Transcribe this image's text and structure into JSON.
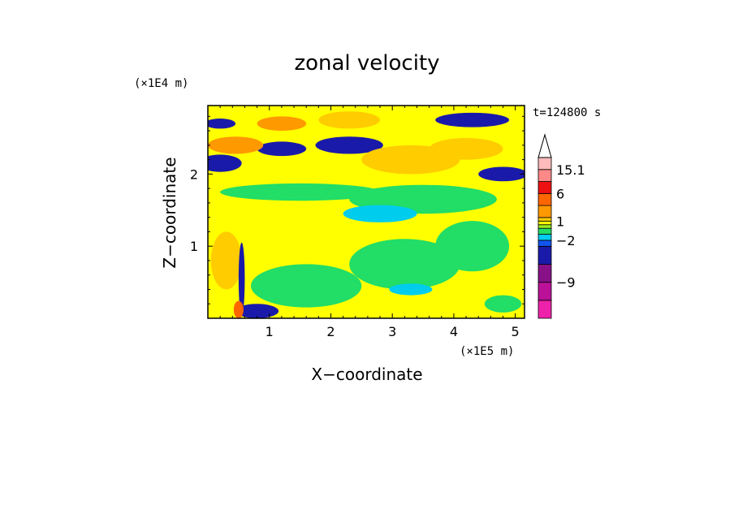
{
  "chart_data": {
    "type": "heatmap",
    "title": "zonal velocity",
    "xlabel": "X−coordinate",
    "ylabel": "Z−coordinate",
    "x_multiplier": "(×1E5 m)",
    "y_multiplier": "(×1E4 m)",
    "time_label": "t=124800 s",
    "xlim": [
      0,
      5.15
    ],
    "ylim": [
      0,
      2.95
    ],
    "x_ticks": [
      {
        "value": 1,
        "label": "1"
      },
      {
        "value": 2,
        "label": "2"
      },
      {
        "value": 3,
        "label": "3"
      },
      {
        "value": 4,
        "label": "4"
      },
      {
        "value": 5,
        "label": "5"
      }
    ],
    "y_ticks": [
      {
        "value": 1,
        "label": "1"
      },
      {
        "value": 2,
        "label": "2"
      }
    ],
    "colorbar": {
      "bands": [
        {
          "color": "#ee22aa"
        },
        {
          "color": "#bb1199"
        },
        {
          "color": "#881188"
        },
        {
          "color": "#1a1aaa"
        },
        {
          "color": "#1155ee"
        },
        {
          "color": "#00ccee"
        },
        {
          "color": "#22dd66"
        },
        {
          "color": "#99ee22"
        },
        {
          "color": "#ffff00"
        },
        {
          "color": "#ffcc00"
        },
        {
          "color": "#ff9900"
        },
        {
          "color": "#ff6600"
        },
        {
          "color": "#ee1111"
        },
        {
          "color": "#ff8888"
        },
        {
          "color": "#ffbbbb"
        }
      ],
      "band_weights": [
        3,
        3,
        3,
        3,
        1,
        1,
        1,
        0.6,
        0.6,
        0.6,
        2,
        2,
        2,
        2,
        2
      ],
      "labels": [
        {
          "text": "15.1",
          "at_band": 14
        },
        {
          "text": "6",
          "at_band": 12
        },
        {
          "text": "1",
          "at_band": 9
        },
        {
          "text": "−2",
          "at_band": 5
        },
        {
          "text": "−9",
          "at_band": 2
        }
      ]
    },
    "field_regions": [
      {
        "x": 0.2,
        "z": 2.7,
        "rx": 0.25,
        "rz": 0.07,
        "color": "#1a1aaa"
      },
      {
        "x": 0.2,
        "z": 2.15,
        "rx": 0.35,
        "rz": 0.12,
        "color": "#1a1aaa"
      },
      {
        "x": 1.2,
        "z": 2.35,
        "rx": 0.4,
        "rz": 0.1,
        "color": "#1a1aaa"
      },
      {
        "x": 2.3,
        "z": 2.4,
        "rx": 0.55,
        "rz": 0.12,
        "color": "#1a1aaa"
      },
      {
        "x": 4.3,
        "z": 2.75,
        "rx": 0.6,
        "rz": 0.1,
        "color": "#1a1aaa"
      },
      {
        "x": 4.8,
        "z": 2.0,
        "rx": 0.4,
        "rz": 0.1,
        "color": "#1a1aaa"
      },
      {
        "x": 0.8,
        "z": 0.1,
        "rx": 0.35,
        "rz": 0.1,
        "color": "#1a1aaa"
      },
      {
        "x": 0.45,
        "z": 2.4,
        "rx": 0.45,
        "rz": 0.12,
        "color": "#ff9900"
      },
      {
        "x": 1.2,
        "z": 2.7,
        "rx": 0.4,
        "rz": 0.1,
        "color": "#ff9900"
      },
      {
        "x": 2.3,
        "z": 2.75,
        "rx": 0.5,
        "rz": 0.12,
        "color": "#ffcc00"
      },
      {
        "x": 4.2,
        "z": 2.35,
        "rx": 0.6,
        "rz": 0.15,
        "color": "#ffcc00"
      },
      {
        "x": 1.8,
        "z": 2.05,
        "rx": 0.8,
        "rz": 0.12,
        "color": "#ffff00"
      },
      {
        "x": 3.3,
        "z": 2.2,
        "rx": 0.8,
        "rz": 0.2,
        "color": "#ffcc00"
      },
      {
        "x": 1.5,
        "z": 1.75,
        "rx": 1.3,
        "rz": 0.12,
        "color": "#22dd66"
      },
      {
        "x": 3.5,
        "z": 1.65,
        "rx": 1.2,
        "rz": 0.2,
        "color": "#22dd66"
      },
      {
        "x": 2.8,
        "z": 1.45,
        "rx": 0.6,
        "rz": 0.12,
        "color": "#00ccee"
      },
      {
        "x": 4.3,
        "z": 1.0,
        "rx": 0.6,
        "rz": 0.35,
        "color": "#22dd66"
      },
      {
        "x": 3.2,
        "z": 0.75,
        "rx": 0.9,
        "rz": 0.35,
        "color": "#22dd66"
      },
      {
        "x": 1.6,
        "z": 0.45,
        "rx": 0.9,
        "rz": 0.3,
        "color": "#22dd66"
      },
      {
        "x": 3.3,
        "z": 0.4,
        "rx": 0.35,
        "rz": 0.08,
        "color": "#00ccee"
      },
      {
        "x": 4.8,
        "z": 0.2,
        "rx": 0.3,
        "rz": 0.12,
        "color": "#22dd66"
      },
      {
        "x": 0.3,
        "z": 0.8,
        "rx": 0.25,
        "rz": 0.4,
        "color": "#ffcc00"
      },
      {
        "x": 0.55,
        "z": 0.55,
        "rx": 0.05,
        "rz": 0.5,
        "color": "#1a1aaa"
      },
      {
        "x": 0.5,
        "z": 0.12,
        "rx": 0.08,
        "rz": 0.12,
        "color": "#ff6600"
      }
    ]
  }
}
